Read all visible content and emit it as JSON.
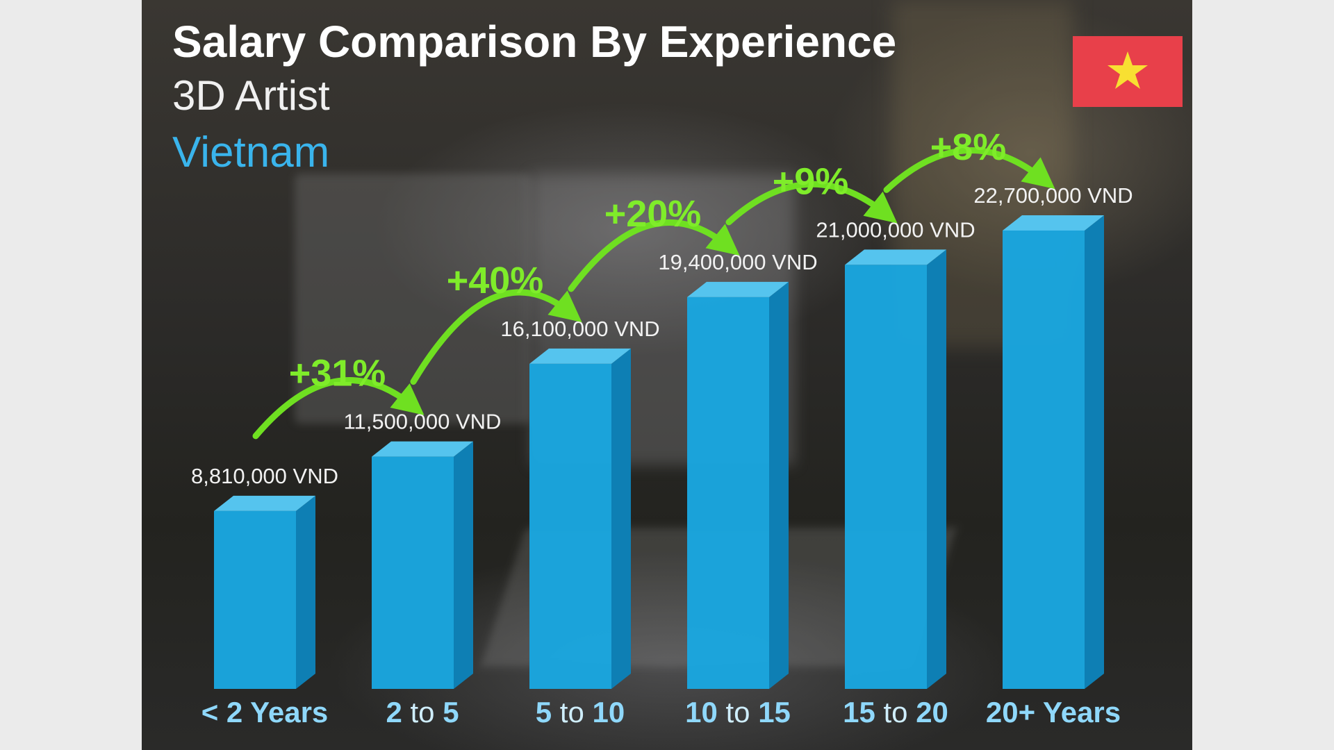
{
  "chart_data": {
    "type": "bar",
    "title": "Salary Comparison By Experience",
    "subtitle": "3D Artist",
    "region": "Vietnam",
    "currency_unit": "VND",
    "categories": [
      "< 2 Years",
      "2 to 5",
      "5 to 10",
      "10 to 15",
      "15 to 20",
      "20+ Years"
    ],
    "category_parts": [
      [
        "< 2 Years",
        "",
        ""
      ],
      [
        "2",
        " to ",
        "5"
      ],
      [
        "5",
        " to ",
        "10"
      ],
      [
        "10",
        " to ",
        "15"
      ],
      [
        "15",
        " to ",
        "20"
      ],
      [
        "20+ Years",
        "",
        ""
      ]
    ],
    "values": [
      8810000,
      11500000,
      16100000,
      19400000,
      21000000,
      22700000
    ],
    "value_labels": [
      "8,810,000 VND",
      "11,500,000 VND",
      "16,100,000 VND",
      "19,400,000 VND",
      "21,000,000 VND",
      "22,700,000 VND"
    ],
    "increase_labels": [
      "+31%",
      "+40%",
      "+20%",
      "+9%",
      "+8%"
    ],
    "ylim": [
      0,
      26000000
    ],
    "colors": {
      "bar_front": "#1aa6df",
      "bar_side": "#0e7fb4",
      "bar_top": "#55c4ee",
      "arrow": "#6fe021",
      "percent": "#7fec2a",
      "category": "#8fd8fb",
      "category_to": "#cfeefd",
      "value_label": "#f2f2f2",
      "title": "#ffffff",
      "subtitle": "#f0f0f0",
      "region": "#3ab4ec"
    }
  },
  "flag": {
    "name": "vietnam-flag",
    "color": "#e8404a",
    "star_color": "#f8e032"
  }
}
